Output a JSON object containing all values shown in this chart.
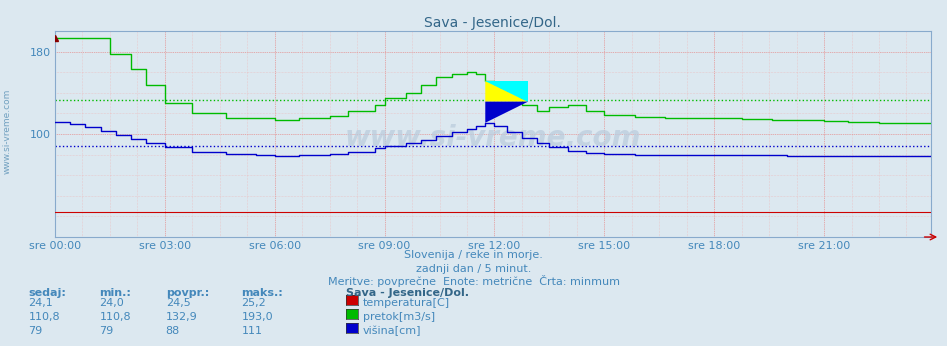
{
  "title": "Sava - Jesenice/Dol.",
  "bg_color": "#dce8f0",
  "plot_bg_color": "#dce8f0",
  "grid_color": "#e8aaaa",
  "xlabel_color": "#4488bb",
  "title_color": "#336688",
  "subtitle_lines": [
    "Slovenija / reke in morje.",
    "zadnji dan / 5 minut.",
    "Meritve: povprečne  Enote: metrične  Črta: minmum"
  ],
  "left_watermark": "www.si-vreme.com",
  "center_watermark": "www.si-vreme.com",
  "xtick_labels": [
    "sre 00:00",
    "sre 03:00",
    "sre 06:00",
    "sre 09:00",
    "sre 12:00",
    "sre 15:00",
    "sre 18:00",
    "sre 21:00"
  ],
  "xtick_positions": [
    0,
    36,
    72,
    108,
    144,
    180,
    216,
    252
  ],
  "ytick_labels": [
    "100",
    "180"
  ],
  "ytick_positions": [
    100,
    180
  ],
  "ymin": 0,
  "ymax": 200,
  "n_points": 288,
  "temp_color": "#cc0000",
  "flow_color": "#00bb00",
  "height_color": "#0000cc",
  "avg_flow": 132.9,
  "avg_height": 88,
  "legend_title": "Sava - Jesenice/Dol.",
  "legend_items": [
    {
      "label": "temperatura[C]",
      "color": "#cc0000"
    },
    {
      "label": "pretok[m3/s]",
      "color": "#00bb00"
    },
    {
      "label": "višina[cm]",
      "color": "#0000cc"
    }
  ],
  "table_headers": [
    "sedaj:",
    "min.:",
    "povpr.:",
    "maks.:"
  ],
  "table_data": [
    [
      "24,1",
      "24,0",
      "24,5",
      "25,2"
    ],
    [
      "110,8",
      "110,8",
      "132,9",
      "193,0"
    ],
    [
      "79",
      "79",
      "88",
      "111"
    ]
  ],
  "flow_series": [
    193,
    193,
    193,
    193,
    193,
    193,
    193,
    193,
    193,
    193,
    193,
    193,
    193,
    193,
    193,
    193,
    193,
    193,
    178,
    178,
    178,
    178,
    178,
    178,
    178,
    163,
    163,
    163,
    163,
    163,
    148,
    148,
    148,
    148,
    148,
    148,
    130,
    130,
    130,
    130,
    130,
    130,
    130,
    130,
    130,
    120,
    120,
    120,
    120,
    120,
    120,
    120,
    120,
    120,
    120,
    120,
    116,
    116,
    116,
    116,
    116,
    116,
    116,
    116,
    116,
    116,
    116,
    116,
    116,
    116,
    116,
    116,
    114,
    114,
    114,
    114,
    114,
    114,
    114,
    114,
    116,
    116,
    116,
    116,
    116,
    116,
    116,
    116,
    116,
    116,
    118,
    118,
    118,
    118,
    118,
    118,
    122,
    122,
    122,
    122,
    122,
    122,
    122,
    122,
    122,
    128,
    128,
    128,
    135,
    135,
    135,
    135,
    135,
    135,
    135,
    140,
    140,
    140,
    140,
    140,
    148,
    148,
    148,
    148,
    148,
    155,
    155,
    155,
    155,
    155,
    158,
    158,
    158,
    158,
    158,
    160,
    160,
    160,
    158,
    158,
    158,
    152,
    152,
    152,
    145,
    145,
    145,
    145,
    135,
    135,
    135,
    135,
    135,
    128,
    128,
    128,
    128,
    128,
    122,
    122,
    122,
    122,
    126,
    126,
    126,
    126,
    126,
    126,
    128,
    128,
    128,
    128,
    128,
    128,
    122,
    122,
    122,
    122,
    122,
    122,
    119,
    119,
    119,
    119,
    119,
    119,
    119,
    119,
    119,
    119,
    117,
    117,
    117,
    117,
    117,
    117,
    117,
    117,
    117,
    117,
    116,
    116,
    116,
    116,
    116,
    116,
    116,
    116,
    116,
    116,
    116,
    116,
    116,
    116,
    116,
    116,
    116,
    116,
    116,
    116,
    116,
    116,
    116,
    116,
    116,
    115,
    115,
    115,
    115,
    115,
    115,
    115,
    115,
    115,
    115,
    114,
    114,
    114,
    114,
    114,
    114,
    114,
    114,
    114,
    114,
    114,
    114,
    114,
    114,
    114,
    114,
    114,
    113,
    113,
    113,
    113,
    113,
    113,
    113,
    113,
    112,
    112,
    112,
    112,
    112,
    112,
    112,
    112,
    112,
    112,
    111,
    111,
    111,
    111,
    111,
    111,
    111,
    111,
    111,
    111,
    111,
    111,
    111,
    111,
    111,
    111,
    111,
    111
  ],
  "height_series": [
    112,
    112,
    112,
    112,
    112,
    110,
    110,
    110,
    110,
    110,
    107,
    107,
    107,
    107,
    107,
    103,
    103,
    103,
    103,
    103,
    99,
    99,
    99,
    99,
    99,
    95,
    95,
    95,
    95,
    95,
    91,
    91,
    91,
    91,
    91,
    91,
    87,
    87,
    87,
    87,
    87,
    87,
    87,
    87,
    87,
    83,
    83,
    83,
    83,
    83,
    83,
    83,
    83,
    83,
    83,
    83,
    81,
    81,
    81,
    81,
    81,
    81,
    81,
    81,
    81,
    81,
    80,
    80,
    80,
    80,
    80,
    80,
    79,
    79,
    79,
    79,
    79,
    79,
    79,
    79,
    80,
    80,
    80,
    80,
    80,
    80,
    80,
    80,
    80,
    80,
    81,
    81,
    81,
    81,
    81,
    81,
    83,
    83,
    83,
    83,
    83,
    83,
    83,
    83,
    83,
    86,
    86,
    86,
    88,
    88,
    88,
    88,
    88,
    88,
    88,
    91,
    91,
    91,
    91,
    91,
    94,
    94,
    94,
    94,
    94,
    98,
    98,
    98,
    98,
    98,
    102,
    102,
    102,
    102,
    102,
    105,
    105,
    105,
    108,
    108,
    108,
    111,
    111,
    111,
    108,
    108,
    108,
    108,
    102,
    102,
    102,
    102,
    102,
    96,
    96,
    96,
    96,
    96,
    91,
    91,
    91,
    91,
    87,
    87,
    87,
    87,
    87,
    87,
    84,
    84,
    84,
    84,
    84,
    84,
    82,
    82,
    82,
    82,
    82,
    82,
    81,
    81,
    81,
    81,
    81,
    81,
    81,
    81,
    81,
    81,
    80,
    80,
    80,
    80,
    80,
    80,
    80,
    80,
    80,
    80,
    80,
    80,
    80,
    80,
    80,
    80,
    80,
    80,
    80,
    80,
    80,
    80,
    80,
    80,
    80,
    80,
    80,
    80,
    80,
    80,
    80,
    80,
    80,
    80,
    80,
    80,
    80,
    80,
    80,
    80,
    80,
    80,
    80,
    80,
    80,
    80,
    80,
    80,
    80,
    80,
    79,
    79,
    79,
    79,
    79,
    79,
    79,
    79,
    79,
    79,
    79,
    79,
    79,
    79,
    79,
    79,
    79,
    79,
    79,
    79,
    79,
    79,
    79,
    79,
    79,
    79,
    79,
    79,
    79,
    79,
    79,
    79,
    79,
    79,
    79,
    79,
    79,
    79,
    79,
    79,
    79,
    79,
    79,
    79,
    79,
    79,
    79,
    79
  ],
  "temp_series_val": 24.1
}
